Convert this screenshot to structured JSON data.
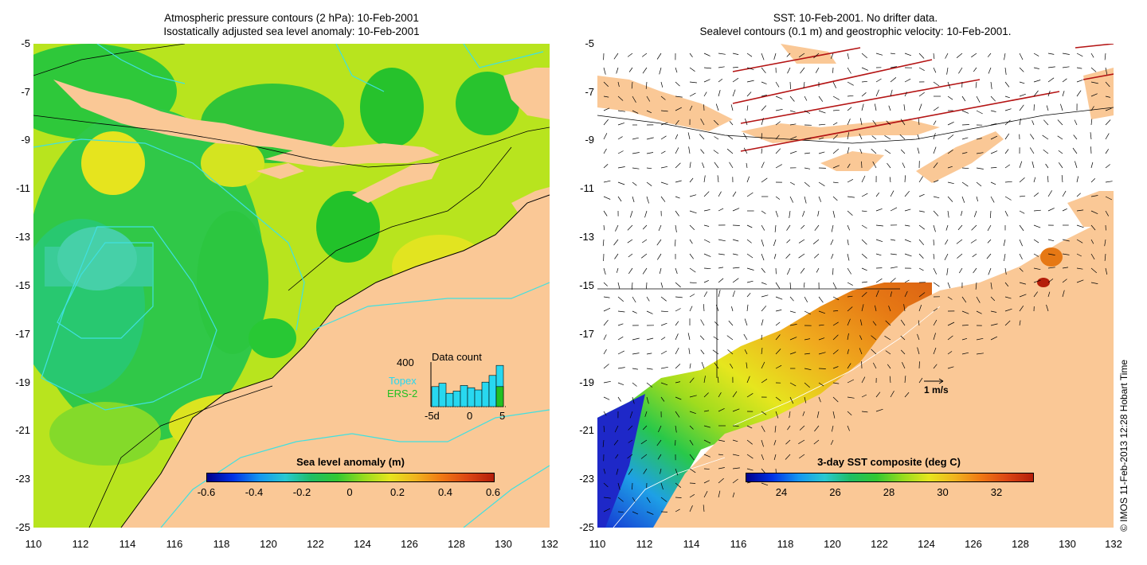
{
  "left_panel": {
    "title_line1": "Atmospheric pressure contours (2 hPa): 10-Feb-2001",
    "title_line2": "Isostatically adjusted sea level anomaly: 10-Feb-2001",
    "colorbar": {
      "title": "Sea level anomaly (m)",
      "labels": [
        "-0.6",
        "-0.4",
        "-0.2",
        "0",
        "0.2",
        "0.4",
        "0.6"
      ]
    },
    "data_count": {
      "title": "Data count",
      "max_label": "400",
      "series": [
        "Topex",
        "ERS-2"
      ],
      "x_labels": [
        "-5d",
        "0",
        "5"
      ],
      "topex_counts": [
        180,
        210,
        120,
        140,
        190,
        170,
        150,
        220,
        280,
        370
      ],
      "ers2_counts": [
        0,
        0,
        0,
        0,
        0,
        0,
        0,
        0,
        0,
        180
      ],
      "series_colors": {
        "Topex": "#28d8f0",
        "ERS-2": "#22c022"
      }
    }
  },
  "right_panel": {
    "title_line1": "SST: 10-Feb-2001. No drifter data.",
    "title_line2": "Sealevel contours (0.1 m) and geostrophic velocity: 10-Feb-2001.",
    "colorbar": {
      "title": "3-day SST composite (deg C)",
      "labels": [
        "24",
        "26",
        "28",
        "30",
        "32"
      ]
    },
    "velocity_scale_label": "1 m/s"
  },
  "axes": {
    "y_labels": [
      "-5",
      "-7",
      "-9",
      "-11",
      "-13",
      "-15",
      "-17",
      "-19",
      "-21",
      "-23",
      "-25"
    ],
    "x_labels": [
      "110",
      "112",
      "114",
      "116",
      "118",
      "120",
      "122",
      "124",
      "126",
      "128",
      "130",
      "132"
    ]
  },
  "credit": "© IMOS 11-Feb-2013 12:28 Hobart Time",
  "colors": {
    "land": "#fac896",
    "ocean_green": "#22c82a",
    "ocean_lime": "#b4e61e",
    "ocean_yellow": "#e6e61e",
    "contour_cyan": "#40e0e0"
  }
}
